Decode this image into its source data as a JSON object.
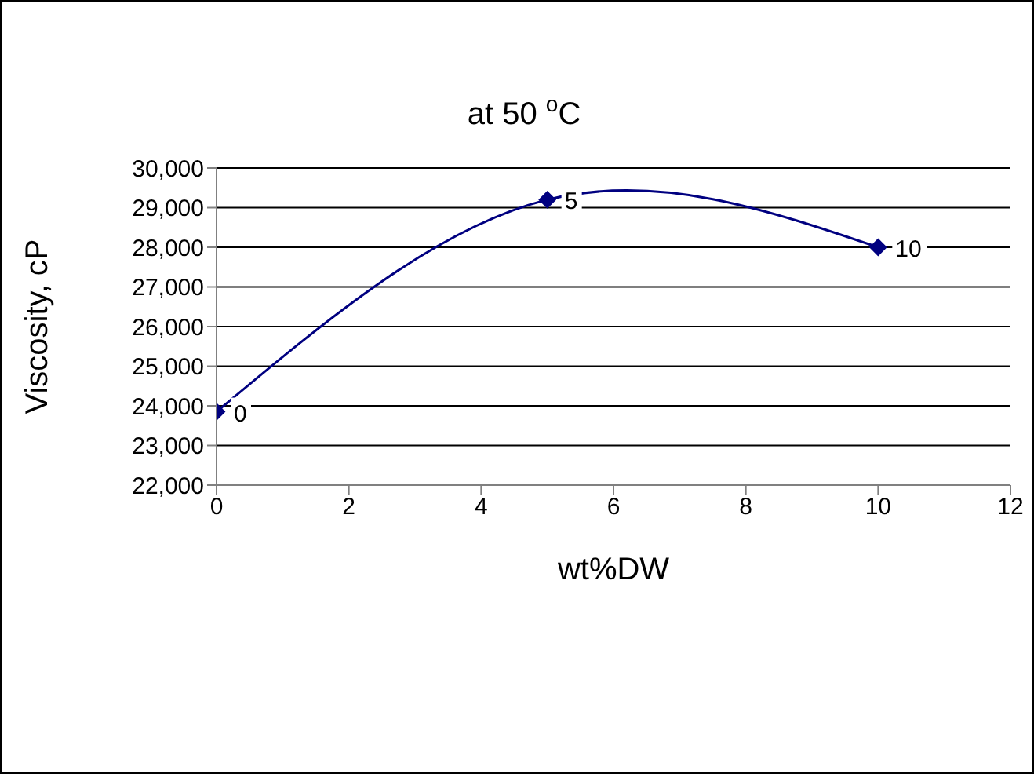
{
  "chart_data": {
    "type": "line",
    "title": "at 50 $^{o}$C",
    "xlabel": "wt%DW",
    "ylabel": "Viscosity, cP",
    "x": [
      0,
      5,
      10
    ],
    "series": [
      {
        "color": "#000080",
        "values": [
          23850,
          29200,
          28000
        ]
      }
    ],
    "annotations": [
      {
        "text": "0",
        "x": 0,
        "y": 23850
      },
      {
        "text": "5",
        "x": 5,
        "y": 29200
      },
      {
        "text": "10",
        "x": 10,
        "y": 28000
      }
    ],
    "xlim": [
      0,
      12
    ],
    "xticks": [
      0,
      2,
      4,
      6,
      8,
      10,
      12
    ],
    "ylim": [
      22000,
      30000
    ],
    "yticks": [
      {
        "value": 22000,
        "label": "22,000"
      },
      {
        "value": 23000,
        "label": "23,000"
      },
      {
        "value": 24000,
        "label": "24,000"
      },
      {
        "value": 25000,
        "label": "25,000"
      },
      {
        "value": 26000,
        "label": "26,000"
      },
      {
        "value": 27000,
        "label": "27,000"
      },
      {
        "value": 28000,
        "label": "28,000"
      },
      {
        "value": 29000,
        "label": "29,000"
      },
      {
        "value": 30000,
        "label": "30,000"
      }
    ],
    "grid": "y",
    "marker": "diamond",
    "legend": false
  }
}
